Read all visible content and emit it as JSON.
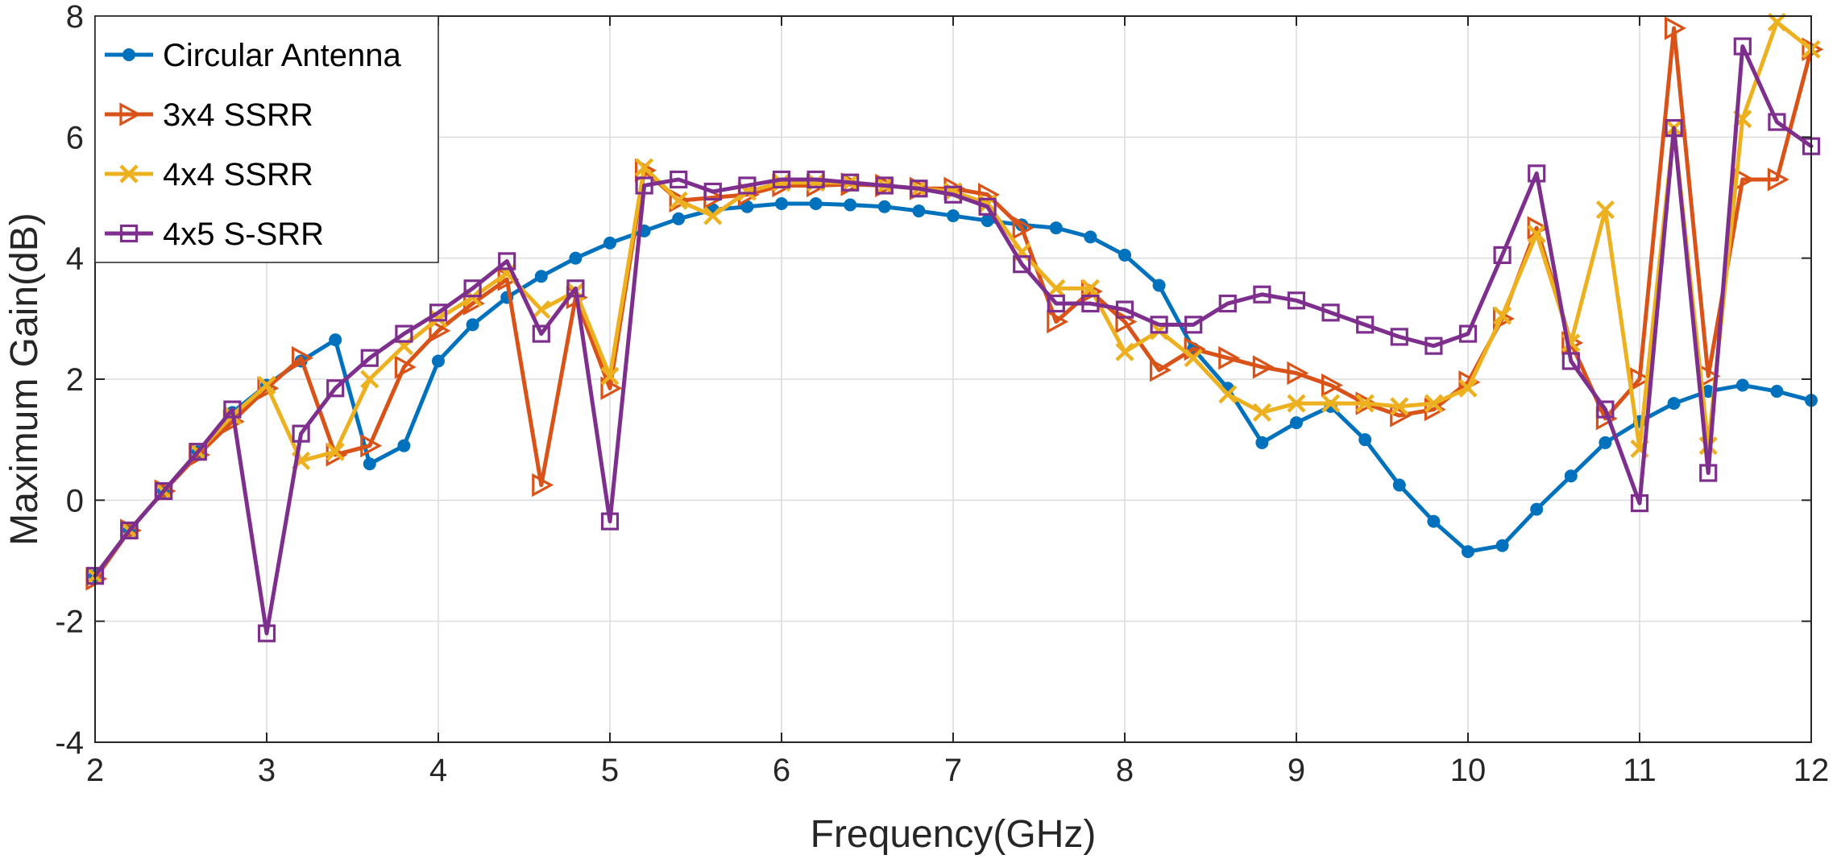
{
  "chart_data": {
    "type": "line",
    "title": "",
    "xlabel": "Frequency(GHz)",
    "ylabel": "Maximum Gain(dB)",
    "xlim": [
      2,
      12
    ],
    "ylim": [
      -4,
      8
    ],
    "xticks": [
      2,
      3,
      4,
      5,
      6,
      7,
      8,
      9,
      10,
      11,
      12
    ],
    "yticks": [
      -4,
      -2,
      0,
      2,
      4,
      6,
      8
    ],
    "xtick_labels": [
      "2",
      "3",
      "4",
      "5",
      "6",
      "7",
      "8",
      "9",
      "10",
      "11",
      "12"
    ],
    "ytick_labels": [
      "-4",
      "-2",
      "0",
      "2",
      "4",
      "6",
      "8"
    ],
    "grid": true,
    "legend_position": "top-left",
    "x": [
      2.0,
      2.2,
      2.4,
      2.6,
      2.8,
      3.0,
      3.2,
      3.4,
      3.6,
      3.8,
      4.0,
      4.2,
      4.4,
      4.6,
      4.8,
      5.0,
      5.2,
      5.4,
      5.6,
      5.8,
      6.0,
      6.2,
      6.4,
      6.6,
      6.8,
      7.0,
      7.2,
      7.4,
      7.6,
      7.8,
      8.0,
      8.2,
      8.4,
      8.6,
      8.8,
      9.0,
      9.2,
      9.4,
      9.6,
      9.8,
      10.0,
      10.2,
      10.4,
      10.6,
      10.8,
      11.0,
      11.2,
      11.4,
      11.6,
      11.8,
      12.0
    ],
    "series": [
      {
        "name": "Circular Antenna",
        "color": "#0072BD",
        "marker": "circle",
        "values": [
          -1.25,
          -0.5,
          0.15,
          0.8,
          1.45,
          1.9,
          2.3,
          2.65,
          0.6,
          0.9,
          2.3,
          2.9,
          3.35,
          3.7,
          4.0,
          4.25,
          4.45,
          4.65,
          4.8,
          4.85,
          4.9,
          4.9,
          4.88,
          4.85,
          4.78,
          4.7,
          4.62,
          4.55,
          4.5,
          4.35,
          4.05,
          3.55,
          2.5,
          1.85,
          0.95,
          1.28,
          1.55,
          1.0,
          0.25,
          -0.35,
          -0.85,
          -0.75,
          -0.15,
          0.4,
          0.95,
          1.3,
          1.6,
          1.8,
          1.9,
          1.8,
          1.65
        ]
      },
      {
        "name": "3x4 SSRR",
        "color": "#D95319",
        "marker": "triangle-right",
        "values": [
          -1.3,
          -0.5,
          0.15,
          0.75,
          1.3,
          1.85,
          2.35,
          0.75,
          0.9,
          2.2,
          2.8,
          3.25,
          3.65,
          0.25,
          3.35,
          1.85,
          5.45,
          4.95,
          5.0,
          5.05,
          5.2,
          5.2,
          5.22,
          5.2,
          5.15,
          5.15,
          5.05,
          4.5,
          2.95,
          3.45,
          2.95,
          2.15,
          2.5,
          2.35,
          2.2,
          2.1,
          1.9,
          1.6,
          1.4,
          1.5,
          1.95,
          3.0,
          4.5,
          2.6,
          1.35,
          2.0,
          7.8,
          2.05,
          5.3,
          5.3,
          7.45
        ]
      },
      {
        "name": "4x4 SSRR",
        "color": "#EDB120",
        "marker": "x",
        "values": [
          -1.25,
          -0.5,
          0.15,
          0.8,
          1.4,
          1.9,
          0.65,
          0.8,
          2.0,
          2.55,
          3.0,
          3.35,
          3.75,
          3.15,
          3.45,
          2.05,
          5.5,
          4.95,
          4.7,
          5.1,
          5.25,
          5.25,
          5.25,
          5.2,
          5.15,
          5.1,
          4.9,
          4.1,
          3.5,
          3.5,
          2.45,
          2.8,
          2.35,
          1.75,
          1.45,
          1.6,
          1.6,
          1.6,
          1.55,
          1.6,
          1.85,
          3.05,
          4.4,
          2.6,
          4.8,
          0.85,
          6.15,
          0.9,
          6.3,
          7.9,
          7.45
        ]
      },
      {
        "name": "4x5 S-SRR",
        "color": "#7E2F8E",
        "marker": "square",
        "values": [
          -1.25,
          -0.5,
          0.15,
          0.8,
          1.5,
          -2.2,
          1.1,
          1.85,
          2.35,
          2.75,
          3.1,
          3.5,
          3.95,
          2.75,
          3.5,
          -0.35,
          5.2,
          5.3,
          5.1,
          5.2,
          5.3,
          5.3,
          5.25,
          5.2,
          5.15,
          5.05,
          4.85,
          3.9,
          3.25,
          3.25,
          3.15,
          2.9,
          2.9,
          3.25,
          3.4,
          3.3,
          3.1,
          2.9,
          2.7,
          2.55,
          2.75,
          4.05,
          5.4,
          2.3,
          1.5,
          -0.05,
          6.15,
          0.45,
          7.5,
          6.25,
          5.85
        ]
      }
    ]
  }
}
